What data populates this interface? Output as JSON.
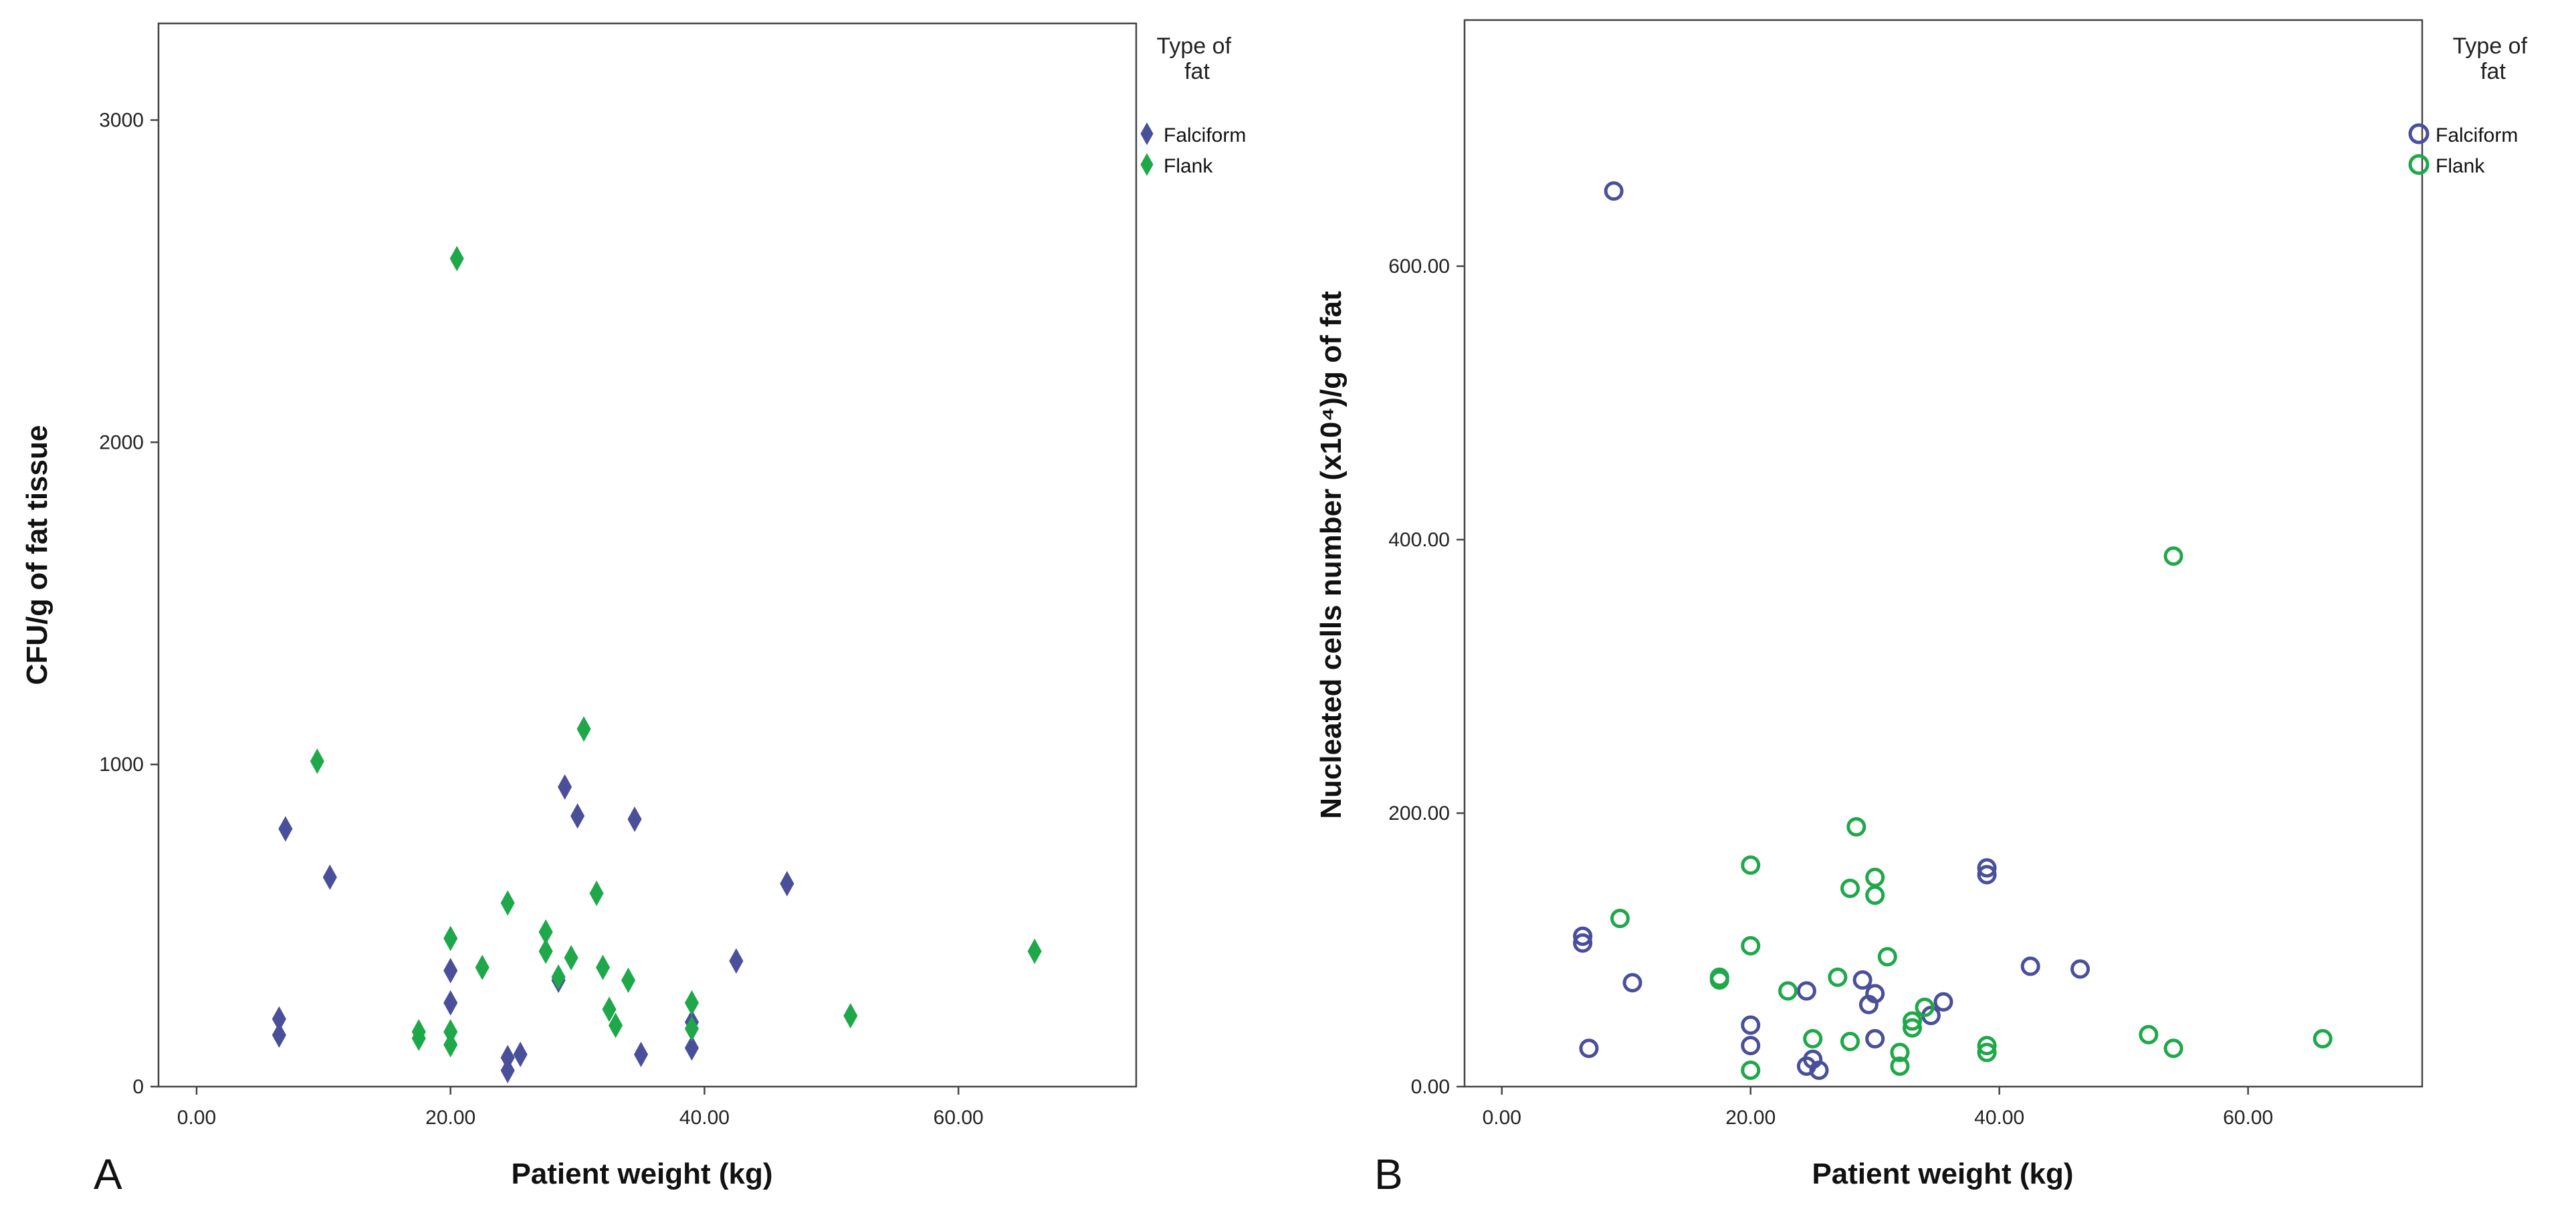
{
  "colors": {
    "falciform": "#4a4f9a",
    "flank": "#1fa84a",
    "axis": "#444444",
    "text": "#111111"
  },
  "chart_data": [
    {
      "type": "scatter",
      "panel_label": "A",
      "xlabel": "Patient weight (kg)",
      "ylabel": "CFU/g of fat tissue",
      "xlim": [
        -3,
        74
      ],
      "ylim": [
        0,
        3300
      ],
      "x_ticks": [
        0,
        20,
        40,
        60
      ],
      "x_tick_labels": [
        "0.00",
        "20.00",
        "40.00",
        "60.00"
      ],
      "y_ticks": [
        0,
        1000,
        2000,
        3000
      ],
      "y_tick_labels": [
        "0",
        "1000",
        "2000",
        "3000"
      ],
      "grid": false,
      "marker": "diamond",
      "legend": {
        "title": "Type of fat",
        "title_lines": [
          "Type of",
          "fat"
        ],
        "position": "right",
        "entries": [
          "Falciform",
          "Flank"
        ]
      },
      "series": [
        {
          "name": "Falciform",
          "points": [
            [
              6.5,
              210
            ],
            [
              6.5,
              160
            ],
            [
              7.0,
              800
            ],
            [
              10.5,
              650
            ],
            [
              20.0,
              360
            ],
            [
              20.0,
              260
            ],
            [
              24.5,
              90
            ],
            [
              24.5,
              50
            ],
            [
              25.5,
              100
            ],
            [
              28.5,
              330
            ],
            [
              29.0,
              930
            ],
            [
              30.0,
              840
            ],
            [
              34.5,
              830
            ],
            [
              35.0,
              100
            ],
            [
              39.0,
              120
            ],
            [
              39.0,
              200
            ],
            [
              42.5,
              390
            ],
            [
              46.5,
              630
            ]
          ]
        },
        {
          "name": "Flank",
          "points": [
            [
              9.5,
              1010
            ],
            [
              17.5,
              150
            ],
            [
              17.5,
              170
            ],
            [
              20.0,
              130
            ],
            [
              20.0,
              170
            ],
            [
              20.0,
              460
            ],
            [
              20.5,
              2570
            ],
            [
              22.5,
              370
            ],
            [
              24.5,
              570
            ],
            [
              27.5,
              480
            ],
            [
              27.5,
              420
            ],
            [
              28.5,
              340
            ],
            [
              29.5,
              400
            ],
            [
              30.5,
              1110
            ],
            [
              31.5,
              600
            ],
            [
              32.0,
              370
            ],
            [
              32.5,
              240
            ],
            [
              33.0,
              190
            ],
            [
              34.0,
              330
            ],
            [
              39.0,
              260
            ],
            [
              39.0,
              180
            ],
            [
              51.5,
              220
            ],
            [
              66.0,
              420
            ]
          ]
        }
      ]
    },
    {
      "type": "scatter",
      "panel_label": "B",
      "xlabel": "Patient weight (kg)",
      "ylabel": "Nucleated cells number (x10⁴)/g of fat",
      "xlim": [
        -3,
        74
      ],
      "ylim": [
        0,
        780
      ],
      "x_ticks": [
        0,
        20,
        40,
        60
      ],
      "x_tick_labels": [
        "0.00",
        "20.00",
        "40.00",
        "60.00"
      ],
      "y_ticks": [
        0,
        200,
        400,
        600
      ],
      "y_tick_labels": [
        "0.00",
        "200.00",
        "400.00",
        "600.00"
      ],
      "grid": false,
      "marker": "circle",
      "legend": {
        "title": "Type of fat",
        "title_lines": [
          "Type of",
          "fat"
        ],
        "position": "right",
        "entries": [
          "Falciform",
          "Flank"
        ]
      },
      "series": [
        {
          "name": "Falciform",
          "points": [
            [
              6.5,
              110
            ],
            [
              6.5,
              105
            ],
            [
              7.0,
              28
            ],
            [
              9.0,
              655
            ],
            [
              10.5,
              76
            ],
            [
              20.0,
              45
            ],
            [
              20.0,
              30
            ],
            [
              24.5,
              70
            ],
            [
              24.5,
              15
            ],
            [
              25.0,
              20
            ],
            [
              25.5,
              12
            ],
            [
              29.0,
              78
            ],
            [
              29.5,
              60
            ],
            [
              30.0,
              68
            ],
            [
              30.0,
              35
            ],
            [
              34.5,
              52
            ],
            [
              35.5,
              62
            ],
            [
              39.0,
              160
            ],
            [
              39.0,
              155
            ],
            [
              42.5,
              88
            ],
            [
              46.5,
              86
            ]
          ]
        },
        {
          "name": "Flank",
          "points": [
            [
              9.5,
              123
            ],
            [
              17.5,
              80
            ],
            [
              17.5,
              78
            ],
            [
              20.0,
              162
            ],
            [
              20.0,
              103
            ],
            [
              20.0,
              12
            ],
            [
              23.0,
              70
            ],
            [
              25.0,
              35
            ],
            [
              27.0,
              80
            ],
            [
              28.0,
              145
            ],
            [
              28.5,
              190
            ],
            [
              28.0,
              33
            ],
            [
              30.0,
              153
            ],
            [
              30.0,
              140
            ],
            [
              31.0,
              95
            ],
            [
              32.0,
              25
            ],
            [
              32.0,
              15
            ],
            [
              33.0,
              43
            ],
            [
              33.0,
              48
            ],
            [
              34.0,
              58
            ],
            [
              39.0,
              30
            ],
            [
              39.0,
              25
            ],
            [
              52.0,
              38
            ],
            [
              54.0,
              388
            ],
            [
              54.0,
              28
            ],
            [
              66.0,
              35
            ]
          ]
        }
      ]
    }
  ]
}
